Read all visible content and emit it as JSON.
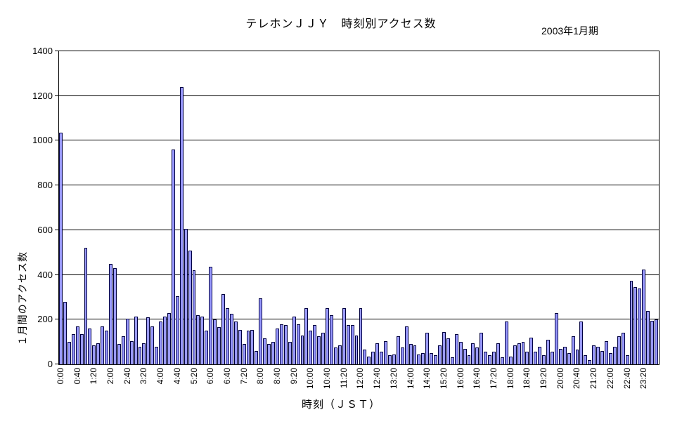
{
  "header": {
    "title": "テレホンＪＪＹ　時刻別アクセス数",
    "period_label": "2003年1月期"
  },
  "chart_data": {
    "type": "bar",
    "title": "テレホンＪＪＹ　時刻別アクセス数",
    "subtitle": "2003年1月期",
    "xlabel": "時刻（ＪＳＴ）",
    "ylabel": "１月間のアクセス数",
    "ylim": [
      0,
      1400
    ],
    "ytick_interval": 200,
    "grid": true,
    "legend": "none",
    "x_tick_every": 4,
    "bar_color": "#9999FF",
    "bar_border_color": "#000040",
    "categories": [
      "0:00",
      "0:10",
      "0:20",
      "0:30",
      "0:40",
      "0:50",
      "1:00",
      "1:10",
      "1:20",
      "1:30",
      "1:40",
      "1:50",
      "2:00",
      "2:10",
      "2:20",
      "2:30",
      "2:40",
      "2:50",
      "3:00",
      "3:10",
      "3:20",
      "3:30",
      "3:40",
      "3:50",
      "4:00",
      "4:10",
      "4:20",
      "4:30",
      "4:40",
      "4:50",
      "5:00",
      "5:10",
      "5:20",
      "5:30",
      "5:40",
      "5:50",
      "6:00",
      "6:10",
      "6:20",
      "6:30",
      "6:40",
      "6:50",
      "7:00",
      "7:10",
      "7:20",
      "7:30",
      "7:40",
      "7:50",
      "8:00",
      "8:10",
      "8:20",
      "8:30",
      "8:40",
      "8:50",
      "9:00",
      "9:10",
      "9:20",
      "9:30",
      "9:40",
      "9:50",
      "10:00",
      "10:10",
      "10:20",
      "10:30",
      "10:40",
      "10:50",
      "11:00",
      "11:10",
      "11:20",
      "11:30",
      "11:40",
      "11:50",
      "12:00",
      "12:10",
      "12:20",
      "12:30",
      "12:40",
      "12:50",
      "13:00",
      "13:10",
      "13:20",
      "13:30",
      "13:40",
      "13:50",
      "14:00",
      "14:10",
      "14:20",
      "14:30",
      "14:40",
      "14:50",
      "15:00",
      "15:10",
      "15:20",
      "15:30",
      "15:40",
      "15:50",
      "16:00",
      "16:10",
      "16:20",
      "16:30",
      "16:40",
      "16:50",
      "17:00",
      "17:10",
      "17:20",
      "17:30",
      "17:40",
      "17:50",
      "18:00",
      "18:10",
      "18:20",
      "18:30",
      "18:40",
      "18:50",
      "19:00",
      "19:10",
      "19:20",
      "19:30",
      "19:40",
      "19:50",
      "20:00",
      "20:10",
      "20:20",
      "20:30",
      "20:40",
      "20:50",
      "21:00",
      "21:10",
      "21:20",
      "21:30",
      "21:40",
      "21:50",
      "22:00",
      "22:10",
      "22:20",
      "22:30",
      "22:40",
      "22:50",
      "23:00",
      "23:10",
      "23:20",
      "23:30",
      "23:40",
      "23:50"
    ],
    "values": [
      1035,
      280,
      100,
      135,
      170,
      135,
      520,
      160,
      85,
      95,
      170,
      150,
      450,
      430,
      90,
      125,
      205,
      105,
      215,
      80,
      95,
      210,
      170,
      80,
      190,
      215,
      230,
      960,
      305,
      1240,
      605,
      510,
      420,
      220,
      215,
      150,
      435,
      200,
      165,
      315,
      250,
      225,
      190,
      155,
      90,
      150,
      155,
      60,
      295,
      115,
      90,
      100,
      160,
      180,
      175,
      100,
      215,
      180,
      130,
      250,
      150,
      175,
      125,
      140,
      250,
      220,
      75,
      85,
      250,
      175,
      175,
      130,
      250,
      65,
      35,
      55,
      95,
      55,
      105,
      40,
      45,
      125,
      75,
      170,
      90,
      85,
      45,
      50,
      140,
      50,
      40,
      85,
      145,
      115,
      30,
      135,
      100,
      70,
      40,
      95,
      75,
      140,
      55,
      40,
      55,
      95,
      30,
      190,
      35,
      85,
      95,
      100,
      55,
      120,
      55,
      80,
      40,
      110,
      55,
      230,
      70,
      80,
      50,
      125,
      65,
      190,
      40,
      20,
      85,
      80,
      60,
      105,
      50,
      80,
      125,
      140,
      40,
      375,
      345,
      340,
      425,
      240,
      195,
      200
    ]
  }
}
